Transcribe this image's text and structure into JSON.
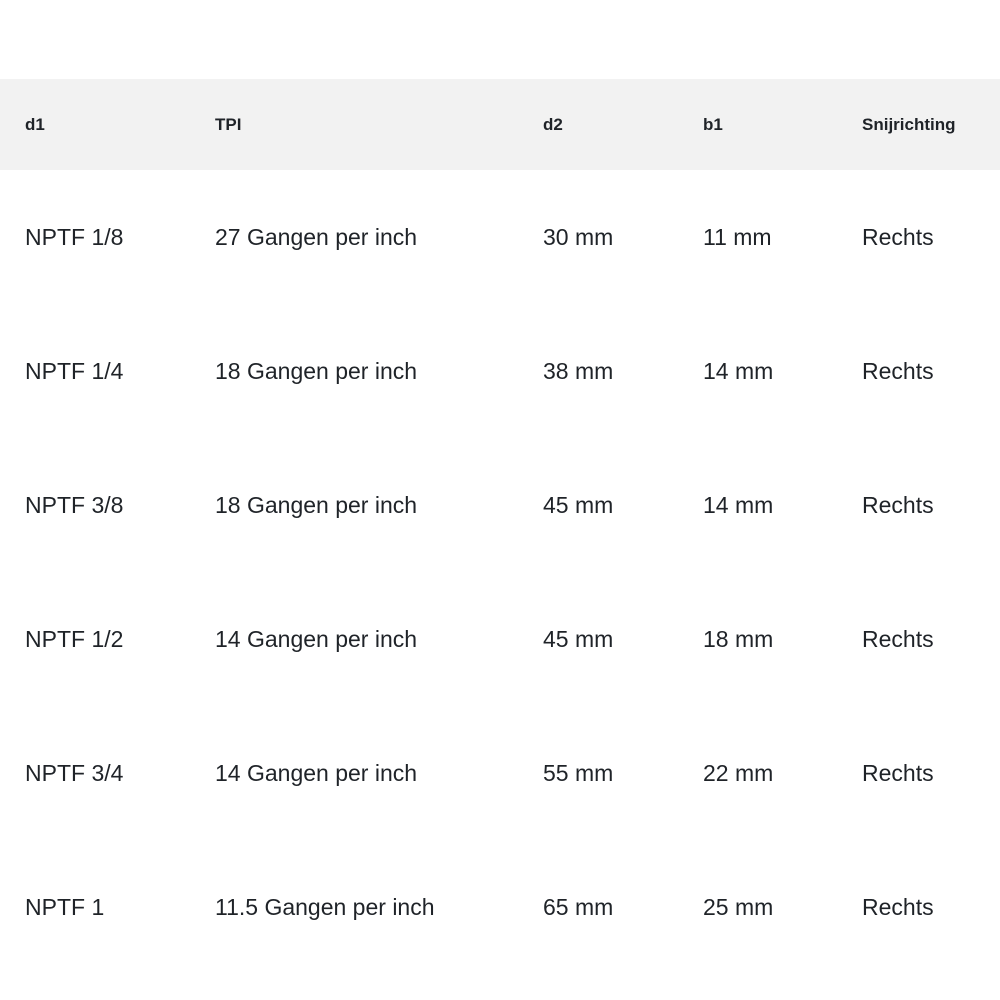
{
  "table": {
    "headers": [
      "d1",
      "TPI",
      "d2",
      "b1",
      "Snijrichting"
    ],
    "rows": [
      [
        "NPTF 1/8",
        "27 Gangen per inch",
        "30 mm",
        "11 mm",
        "Rechts"
      ],
      [
        "NPTF 1/4",
        "18 Gangen per inch",
        "38 mm",
        "14 mm",
        "Rechts"
      ],
      [
        "NPTF 3/8",
        "18 Gangen per inch",
        "45 mm",
        "14 mm",
        "Rechts"
      ],
      [
        "NPTF 1/2",
        "14 Gangen per inch",
        "45 mm",
        "18 mm",
        "Rechts"
      ],
      [
        "NPTF 3/4",
        "14 Gangen per inch",
        "55 mm",
        "22 mm",
        "Rechts"
      ],
      [
        "NPTF 1",
        "11.5 Gangen per inch",
        "65 mm",
        "25 mm",
        "Rechts"
      ]
    ]
  }
}
